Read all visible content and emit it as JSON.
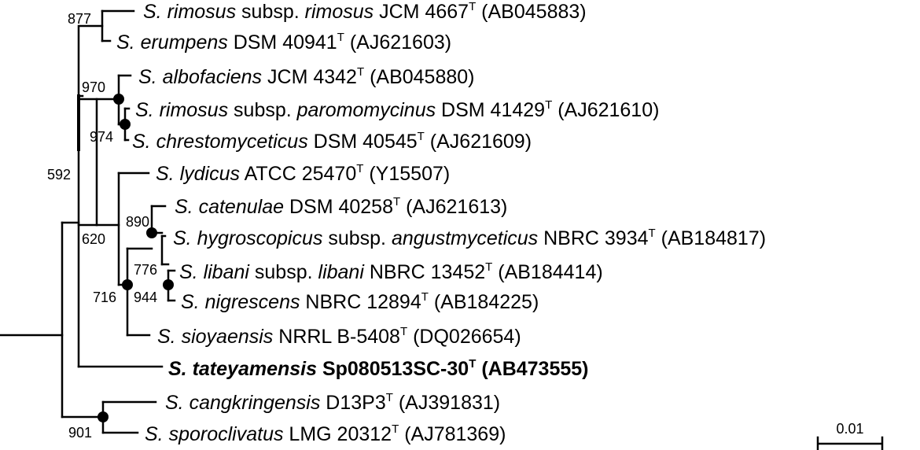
{
  "taxa": [
    {
      "id": "rimosus",
      "genus": "S.",
      "name": "rimosus",
      "extra": [
        " subsp. ",
        "rimosus"
      ],
      "strain": "JCM 4667",
      "type_mark": "T",
      "accession": "(AB045883)",
      "bold": false
    },
    {
      "id": "erumpens",
      "genus": "S.",
      "name": "erumpens",
      "extra": [],
      "strain": "DSM 40941",
      "type_mark": "T",
      "accession": "(AJ621603)",
      "bold": false
    },
    {
      "id": "albofaciens",
      "genus": "S.",
      "name": "albofaciens",
      "extra": [],
      "strain": "JCM 4342",
      "type_mark": "T",
      "accession": "(AB045880)",
      "bold": false
    },
    {
      "id": "paromomycinus",
      "genus": "S.",
      "name": "rimosus",
      "extra": [
        " subsp. ",
        "paromomycinus"
      ],
      "strain": "DSM 41429",
      "type_mark": "T",
      "accession": "(AJ621610)",
      "bold": false
    },
    {
      "id": "chrestomyceticus",
      "genus": "S.",
      "name": "chrestomyceticus",
      "extra": [],
      "strain": "DSM 40545",
      "type_mark": "T",
      "accession": "(AJ621609)",
      "bold": false
    },
    {
      "id": "lydicus",
      "genus": "S.",
      "name": "lydicus",
      "extra": [],
      "strain": "ATCC 25470",
      "type_mark": "T",
      "accession": "(Y15507)",
      "bold": false
    },
    {
      "id": "catenulae",
      "genus": "S.",
      "name": "catenulae",
      "extra": [],
      "strain": "DSM 40258",
      "type_mark": "T",
      "accession": "(AJ621613)",
      "bold": false
    },
    {
      "id": "angustmyceticus",
      "genus": "S.",
      "name": "hygroscopicus",
      "extra": [
        " subsp. ",
        "angustmyceticus"
      ],
      "strain": "NBRC 3934",
      "type_mark": "T",
      "accession": "(AB184817)",
      "bold": false
    },
    {
      "id": "libani",
      "genus": "S.",
      "name": "libani",
      "extra": [
        " subsp. ",
        "libani"
      ],
      "strain": "NBRC 13452",
      "type_mark": "T",
      "accession": "(AB184414)",
      "bold": false
    },
    {
      "id": "nigrescens",
      "genus": "S.",
      "name": "nigrescens",
      "extra": [],
      "strain": "NBRC 12894",
      "type_mark": "T",
      "accession": "(AB184225)",
      "bold": false
    },
    {
      "id": "sioyaensis",
      "genus": "S.",
      "name": "sioyaensis",
      "extra": [],
      "strain": "NRRL B-5408",
      "type_mark": "T",
      "accession": "(DQ026654)",
      "bold": false
    },
    {
      "id": "tateyamensis",
      "genus": "S.",
      "name": "tateyamensis",
      "extra": [],
      "strain": "Sp080513SC-30",
      "type_mark": "T",
      "accession": "(AB473555)",
      "bold": true
    },
    {
      "id": "cangkringensis",
      "genus": "S.",
      "name": "cangkringensis",
      "extra": [],
      "strain": "D13P3",
      "type_mark": "T",
      "accession": "(AJ391831)",
      "bold": false
    },
    {
      "id": "sporoclivatus",
      "genus": "S.",
      "name": "sporoclivatus",
      "extra": [],
      "strain": "LMG 20312",
      "type_mark": "T",
      "accession": "(AJ781369)",
      "bold": false
    }
  ],
  "bootstrap": {
    "b877": "877",
    "b970": "970",
    "b974": "974",
    "b592": "592",
    "b890": "890",
    "b620": "620",
    "b776": "776",
    "b716": "716",
    "b944": "944",
    "b901": "901"
  },
  "scale_bar": {
    "label": "0.01"
  },
  "colors": {
    "line": "#000000",
    "text": "#000000",
    "background": "#ffffff"
  }
}
